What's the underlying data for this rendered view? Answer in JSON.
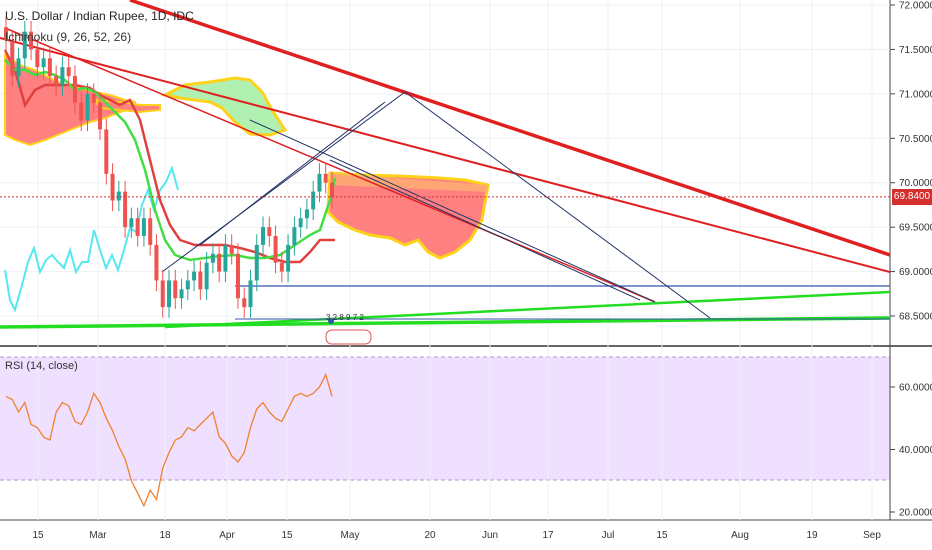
{
  "header": {
    "title": "U.S. Dollar / Indian Rupee, 1D, IDC",
    "indicator": "Ichimoku (9, 26, 52, 26)",
    "rsi_label": "RSI (14, close)"
  },
  "price_axis": {
    "labels": [
      "72.0000",
      "71.5000",
      "71.0000",
      "70.5000",
      "70.0000",
      "69.5000",
      "69.0000",
      "68.5000"
    ],
    "values": [
      72.0,
      71.5,
      71.0,
      70.5,
      70.0,
      69.5,
      69.0,
      68.5
    ],
    "current_label": "69.8400",
    "current_value": 69.84
  },
  "rsi_axis": {
    "labels": [
      "60.0000",
      "40.0000",
      "20.0000"
    ],
    "values": [
      60,
      40,
      20
    ]
  },
  "time_axis": {
    "labels": [
      "15",
      "Mar",
      "18",
      "Apr",
      "15",
      "May",
      "20",
      "Jun",
      "17",
      "Jul",
      "15",
      "Aug",
      "19",
      "Sep"
    ]
  },
  "badge_text": "3 2 8 9 7 2",
  "colors": {
    "candle_up": "#26a69a",
    "candle_down": "#ef5350",
    "trendline_red": "#e02020",
    "trendline_green": "#22dd22",
    "cloud_fill": "#ff8080",
    "cloud_green": "#b0f0b0",
    "cloud_edge": "#ffd21a",
    "rsi_line": "#f08030",
    "rsi_band": "#f0e0ff",
    "lagging_cyan": "#55e8f0",
    "current_price": "#d32f2f"
  },
  "chart_data": {
    "type": "candlestick",
    "title": "U.S. Dollar / Indian Rupee, 1D, IDC",
    "price_ylim": [
      68.3,
      72.0
    ],
    "rsi_ylim": [
      18,
      72
    ],
    "candles_close": [
      71.6,
      71.2,
      71.4,
      71.7,
      71.5,
      71.3,
      71.4,
      71.2,
      71.1,
      71.3,
      71.2,
      70.9,
      70.7,
      71.0,
      70.9,
      70.6,
      70.1,
      69.8,
      69.9,
      69.5,
      69.6,
      69.4,
      69.6,
      69.3,
      68.9,
      68.6,
      68.9,
      68.7,
      68.8,
      68.9,
      69.0,
      68.8,
      69.1,
      69.2,
      69.0,
      69.3,
      69.2,
      68.7,
      68.6,
      68.9,
      69.3,
      69.5,
      69.4,
      69.1,
      69.0,
      69.3,
      69.5,
      69.6,
      69.7,
      69.9,
      70.1,
      70.0,
      69.84
    ],
    "rsi_values": [
      57,
      56,
      52,
      55,
      48,
      47,
      44,
      43,
      52,
      55,
      54,
      49,
      48,
      52,
      58,
      55,
      50,
      46,
      41,
      37,
      30,
      26,
      22,
      27,
      24,
      34,
      39,
      43,
      44,
      47,
      46,
      48,
      50,
      52,
      44,
      42,
      38,
      36,
      39,
      47,
      53,
      55,
      52,
      50,
      49,
      53,
      57,
      58,
      57,
      58,
      60,
      64,
      57
    ],
    "rsi_bands": [
      70,
      30
    ]
  }
}
